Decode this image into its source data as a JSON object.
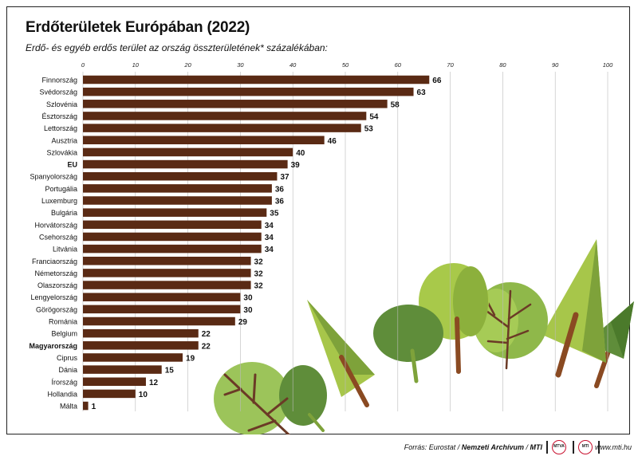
{
  "title": "Erdőterületek Európában (2022)",
  "subtitle": "Erdő- és egyéb erdős terület az ország összterületének* százalékában:",
  "footer": {
    "source_prefix": "Forrás: Eurostat / ",
    "source_archive": "Nemzeti Archívum",
    "source_sep": " / ",
    "source_mti": "MTI",
    "logo1_text": "MTVA",
    "logo2_text": "MTI",
    "website": "www.mti.hu"
  },
  "colors": {
    "bar": "#5a2a14",
    "grid": "#bbbbbb",
    "text": "#111111"
  },
  "chart_data": {
    "type": "bar",
    "orientation": "horizontal",
    "xlim": [
      0,
      100
    ],
    "x_ticks": [
      0,
      10,
      20,
      30,
      40,
      50,
      60,
      70,
      80,
      90,
      100
    ],
    "grid": true,
    "categories": [
      "Finnország",
      "Svédország",
      "Szlovénia",
      "Észtország",
      "Lettország",
      "Ausztria",
      "Szlovákia",
      "EU",
      "Spanyolország",
      "Portugália",
      "Luxemburg",
      "Bulgária",
      "Horvátország",
      "Csehország",
      "Litvánia",
      "Franciaország",
      "Németország",
      "Olaszország",
      "Lengyelország",
      "Görögország",
      "Románia",
      "Belgium",
      "Magyarország",
      "Ciprus",
      "Dánia",
      "Írország",
      "Hollandia",
      "Málta"
    ],
    "values": [
      66,
      63,
      58,
      54,
      53,
      46,
      40,
      39,
      37,
      36,
      36,
      35,
      34,
      34,
      34,
      32,
      32,
      32,
      30,
      30,
      29,
      22,
      22,
      19,
      15,
      12,
      10,
      1
    ],
    "bold_categories": [
      "EU",
      "Magyarország"
    ]
  }
}
